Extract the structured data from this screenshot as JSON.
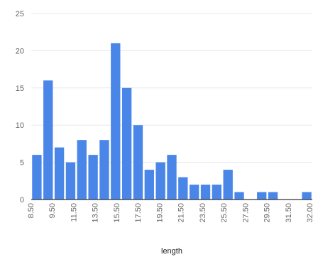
{
  "chart_data": {
    "type": "bar",
    "title": "",
    "xlabel": "length",
    "ylabel": "",
    "ylim": [
      0,
      25
    ],
    "yticks": [
      0,
      5,
      10,
      15,
      20,
      25
    ],
    "grid": true,
    "color": "#4a86e8",
    "gridColor": "#e8e8e8",
    "axisColor": "#333333",
    "tickTextColor": "#666666",
    "xtick_labels": [
      "8.50",
      "9.50",
      "11.50",
      "13.50",
      "15.50",
      "17.50",
      "19.50",
      "21.50",
      "23.50",
      "25.50",
      "27.50",
      "29.50",
      "31.50",
      "32.00"
    ],
    "values": [
      6,
      16,
      7,
      5,
      8,
      6,
      8,
      21,
      15,
      10,
      4,
      5,
      6,
      3,
      2,
      2,
      2,
      4,
      1,
      0,
      1,
      1,
      0,
      0,
      1
    ]
  }
}
